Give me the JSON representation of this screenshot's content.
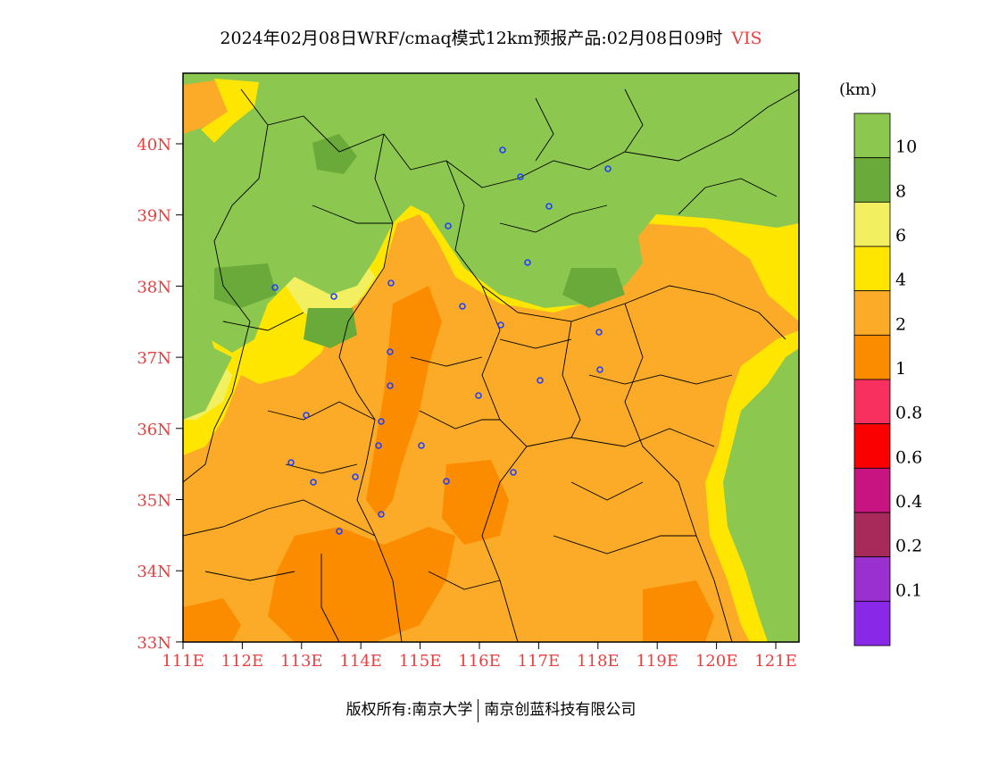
{
  "title": {
    "main": "2024年02月08日WRF/cmaq模式12km预报产品:02月08日09时",
    "variable": "VIS"
  },
  "map": {
    "lat_ticks": [
      "40N",
      "39N",
      "38N",
      "37N",
      "36N",
      "35N",
      "34N",
      "33N"
    ],
    "lon_ticks": [
      "111E",
      "112E",
      "113E",
      "114E",
      "115E",
      "116E",
      "117E",
      "118E",
      "119E",
      "120E",
      "121E"
    ],
    "tick_color": "#e84040",
    "station_marker_color": "#2040ff",
    "station_count": 28
  },
  "legend": {
    "unit": "(km)",
    "labels": [
      "10",
      "8",
      "6",
      "4",
      "2",
      "1",
      "0.8",
      "0.6",
      "0.4",
      "0.2",
      "0.1"
    ],
    "colors": [
      "#8cc850",
      "#6aaa3a",
      "#f2f060",
      "#ffe600",
      "#fbab28",
      "#fb8c00",
      "#f83060",
      "#fa0000",
      "#c81480",
      "#a82a5a",
      "#9a30d0",
      "#8a28e8"
    ]
  },
  "copyright": {
    "left": "版权所有:南京大学",
    "right": "南京创蓝科技有限公司"
  }
}
